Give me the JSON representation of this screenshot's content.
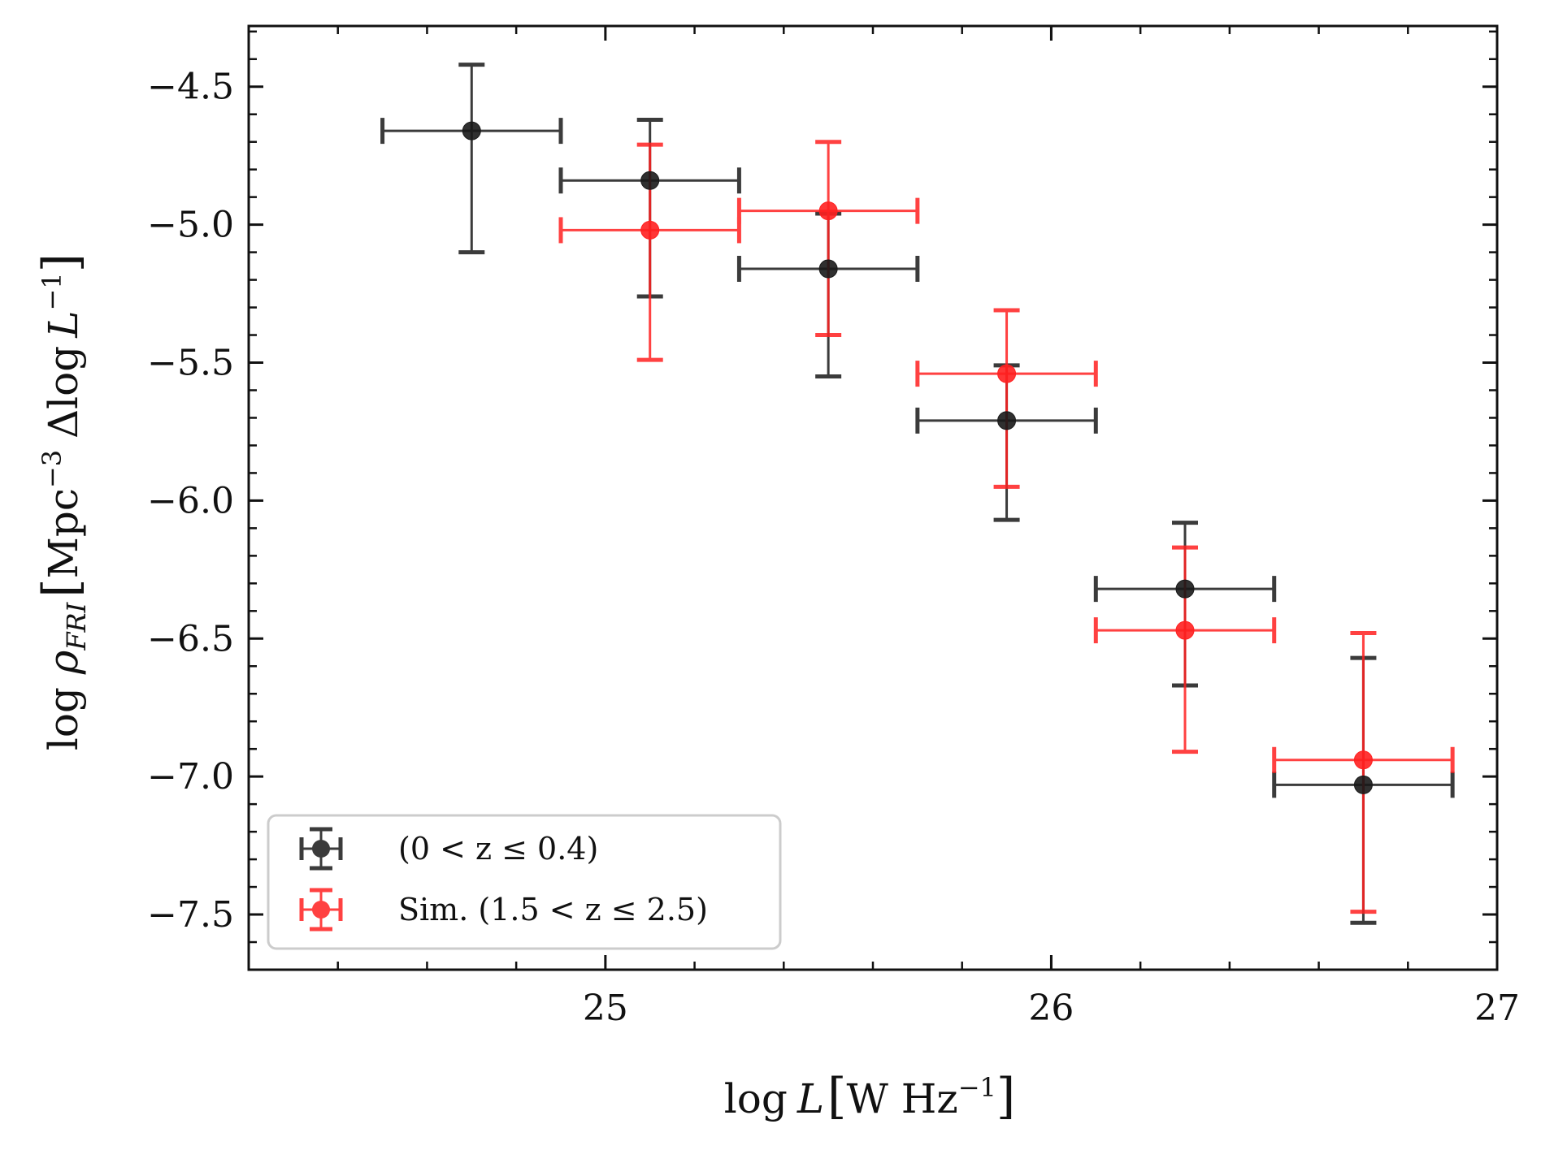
{
  "chart_data": {
    "type": "scatter",
    "xlabel": "log L [W Hz⁻¹]",
    "ylabel": "log ρFRI [Mpc⁻³ Δlog L⁻¹]",
    "xlim": [
      24.2,
      27.0
    ],
    "ylim": [
      -7.7,
      -4.28
    ],
    "x_ticks": [
      25,
      26,
      27
    ],
    "x_tick_labels": [
      "25",
      "26",
      "27"
    ],
    "y_ticks": [
      -4.5,
      -5.0,
      -5.5,
      -6.0,
      -6.5,
      -7.0,
      -7.5
    ],
    "y_tick_labels": [
      "−4.5",
      "−5.0",
      "−5.5",
      "−6.0",
      "−6.5",
      "−7.0",
      "−7.5"
    ],
    "grid": false,
    "legend_position": "lower-left",
    "series": [
      {
        "name": "(0 < z ≤ 0.4)",
        "color": "#1a1a1a",
        "x": [
          24.7,
          25.1,
          25.5,
          25.9,
          26.3,
          26.7
        ],
        "y": [
          -4.66,
          -4.84,
          -5.16,
          -5.71,
          -6.32,
          -7.03
        ],
        "x_err": [
          0.2,
          0.2,
          0.2,
          0.2,
          0.2,
          0.2
        ],
        "y_err_lower": [
          0.44,
          0.42,
          0.39,
          0.36,
          0.35,
          0.5
        ],
        "y_err_upper": [
          0.24,
          0.22,
          0.2,
          0.2,
          0.24,
          0.46
        ]
      },
      {
        "name": "Sim. (1.5 < z ≤ 2.5)",
        "color": "#ff2020",
        "x": [
          25.1,
          25.5,
          25.9,
          26.3,
          26.7
        ],
        "y": [
          -5.02,
          -4.95,
          -5.54,
          -6.47,
          -6.94
        ],
        "x_err": [
          0.2,
          0.2,
          0.2,
          0.2,
          0.2
        ],
        "y_err_lower": [
          0.47,
          0.45,
          0.41,
          0.44,
          0.55
        ],
        "y_err_upper": [
          0.31,
          0.25,
          0.23,
          0.3,
          0.46
        ]
      }
    ]
  }
}
